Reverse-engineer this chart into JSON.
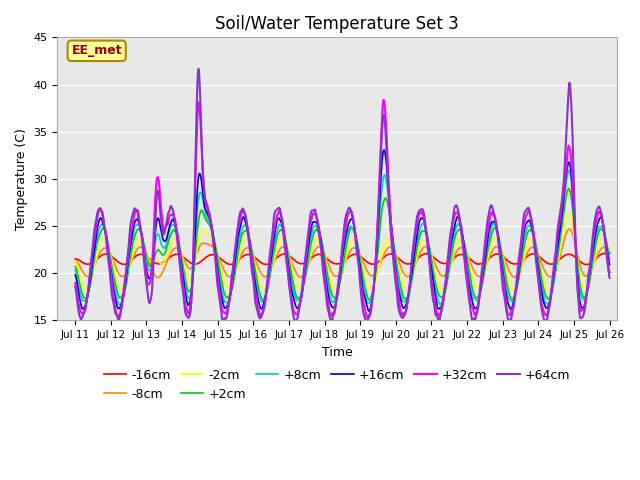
{
  "title": "Soil/Water Temperature Set 3",
  "xlabel": "Time",
  "ylabel": "Temperature (C)",
  "ylim": [
    15,
    45
  ],
  "xlim_days": [
    10.5,
    26.2
  ],
  "xtick_labels": [
    "Jul 11",
    "Jul 12",
    "Jul 13",
    "Jul 14",
    "Jul 15",
    "Jul 16",
    "Jul 17",
    "Jul 18",
    "Jul 19",
    "Jul 20",
    "Jul 21",
    "Jul 22",
    "Jul 23",
    "Jul 24",
    "Jul 25",
    "Jul 26"
  ],
  "xtick_positions": [
    11,
    12,
    13,
    14,
    15,
    16,
    17,
    18,
    19,
    20,
    21,
    22,
    23,
    24,
    25,
    26
  ],
  "series": [
    {
      "label": "-16cm",
      "color": "#ff0000",
      "lw": 1.2
    },
    {
      "label": "-8cm",
      "color": "#ff8800",
      "lw": 1.2
    },
    {
      "label": "-2cm",
      "color": "#ffff00",
      "lw": 1.2
    },
    {
      "label": "+2cm",
      "color": "#00cc00",
      "lw": 1.2
    },
    {
      "label": "+8cm",
      "color": "#00cccc",
      "lw": 1.2
    },
    {
      "label": "+16cm",
      "color": "#0000bb",
      "lw": 1.2
    },
    {
      "label": "+32cm",
      "color": "#ff00ff",
      "lw": 1.5
    },
    {
      "label": "+64cm",
      "color": "#8833cc",
      "lw": 1.5
    }
  ],
  "annotation_text": "EE_met",
  "annotation_color": "#990000",
  "annotation_bg": "#ffff99",
  "annotation_border": "#aa8800",
  "plot_bg": "#e8e8e8",
  "fig_bg": "#ffffff",
  "title_fontsize": 12,
  "legend_fontsize": 9,
  "axis_fontsize": 9
}
